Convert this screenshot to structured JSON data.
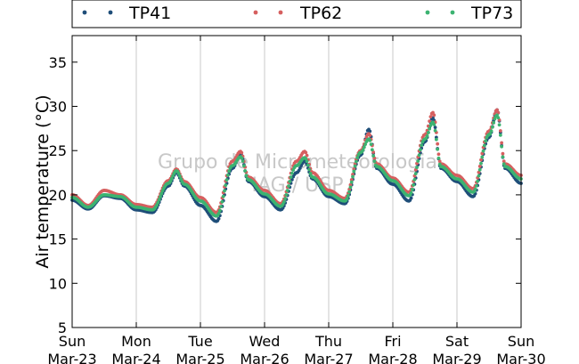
{
  "chart_data": {
    "type": "scatter",
    "title": "",
    "xlabel": "",
    "ylabel": "Air temperature (°C)",
    "ylim": [
      5,
      38
    ],
    "yticks": [
      5,
      10,
      15,
      20,
      25,
      30,
      35
    ],
    "x_range": [
      "2015-03-23",
      "2015-03-30"
    ],
    "x_ticks": [
      {
        "day": "Sun",
        "date": "Mar-23"
      },
      {
        "day": "Mon",
        "date": "Mar-24"
      },
      {
        "day": "Tue",
        "date": "Mar-25"
      },
      {
        "day": "Wed",
        "date": "Mar-26"
      },
      {
        "day": "Thu",
        "date": "Mar-27"
      },
      {
        "day": "Fri",
        "date": "Mar-28"
      },
      {
        "day": "Sat",
        "date": "Mar-29"
      },
      {
        "day": "Sun",
        "date": "Mar-30"
      }
    ],
    "grid": "vertical",
    "legend_position": "top",
    "watermark": [
      "Grupo de Micrometeorologia",
      "IAG / USP"
    ],
    "series": [
      {
        "name": "TP41",
        "color": "#1f4e79",
        "points": [
          [
            "2015-03-23 00:00",
            19.4
          ],
          [
            "2015-03-23 06:00",
            18.4
          ],
          [
            "2015-03-23 12:00",
            19.9
          ],
          [
            "2015-03-23 18:00",
            19.6
          ],
          [
            "2015-03-24 00:00",
            18.3
          ],
          [
            "2015-03-24 06:00",
            18.0
          ],
          [
            "2015-03-24 12:00",
            21.0
          ],
          [
            "2015-03-24 15:00",
            22.5
          ],
          [
            "2015-03-24 18:00",
            21.0
          ],
          [
            "2015-03-25 00:00",
            18.8
          ],
          [
            "2015-03-25 06:00",
            17.0
          ],
          [
            "2015-03-25 12:00",
            23.0
          ],
          [
            "2015-03-25 15:00",
            24.6
          ],
          [
            "2015-03-25 18:00",
            21.5
          ],
          [
            "2015-03-26 00:00",
            19.8
          ],
          [
            "2015-03-26 06:00",
            18.3
          ],
          [
            "2015-03-26 12:00",
            22.5
          ],
          [
            "2015-03-26 15:00",
            23.8
          ],
          [
            "2015-03-26 18:00",
            21.8
          ],
          [
            "2015-03-27 00:00",
            19.8
          ],
          [
            "2015-03-27 06:00",
            19.0
          ],
          [
            "2015-03-27 12:00",
            24.5
          ],
          [
            "2015-03-27 15:00",
            27.4
          ],
          [
            "2015-03-27 18:00",
            23.0
          ],
          [
            "2015-03-28 00:00",
            21.2
          ],
          [
            "2015-03-28 06:00",
            19.3
          ],
          [
            "2015-03-28 12:00",
            26.0
          ],
          [
            "2015-03-28 15:00",
            28.7
          ],
          [
            "2015-03-28 18:00",
            23.0
          ],
          [
            "2015-03-29 00:00",
            21.5
          ],
          [
            "2015-03-29 06:00",
            19.8
          ],
          [
            "2015-03-29 12:00",
            26.5
          ],
          [
            "2015-03-29 15:00",
            29.6
          ],
          [
            "2015-03-29 18:00",
            23.0
          ],
          [
            "2015-03-30 00:00",
            21.3
          ]
        ]
      },
      {
        "name": "TP62",
        "color": "#d65f5f",
        "points": [
          [
            "2015-03-23 00:00",
            20.0
          ],
          [
            "2015-03-23 06:00",
            18.8
          ],
          [
            "2015-03-23 12:00",
            20.5
          ],
          [
            "2015-03-23 18:00",
            20.0
          ],
          [
            "2015-03-24 00:00",
            18.9
          ],
          [
            "2015-03-24 06:00",
            18.6
          ],
          [
            "2015-03-24 12:00",
            21.6
          ],
          [
            "2015-03-24 15:00",
            22.9
          ],
          [
            "2015-03-24 18:00",
            21.5
          ],
          [
            "2015-03-25 00:00",
            19.7
          ],
          [
            "2015-03-25 06:00",
            18.0
          ],
          [
            "2015-03-25 12:00",
            23.8
          ],
          [
            "2015-03-25 15:00",
            24.9
          ],
          [
            "2015-03-25 18:00",
            22.0
          ],
          [
            "2015-03-26 00:00",
            20.5
          ],
          [
            "2015-03-26 06:00",
            19.0
          ],
          [
            "2015-03-26 12:00",
            23.8
          ],
          [
            "2015-03-26 15:00",
            24.9
          ],
          [
            "2015-03-26 18:00",
            22.5
          ],
          [
            "2015-03-27 00:00",
            20.5
          ],
          [
            "2015-03-27 06:00",
            19.6
          ],
          [
            "2015-03-27 12:00",
            25.0
          ],
          [
            "2015-03-27 15:00",
            26.9
          ],
          [
            "2015-03-27 18:00",
            23.5
          ],
          [
            "2015-03-28 00:00",
            21.9
          ],
          [
            "2015-03-28 06:00",
            20.3
          ],
          [
            "2015-03-28 12:00",
            26.8
          ],
          [
            "2015-03-28 15:00",
            29.3
          ],
          [
            "2015-03-28 18:00",
            23.5
          ],
          [
            "2015-03-29 00:00",
            22.2
          ],
          [
            "2015-03-29 06:00",
            20.7
          ],
          [
            "2015-03-29 12:00",
            27.2
          ],
          [
            "2015-03-29 15:00",
            29.6
          ],
          [
            "2015-03-29 18:00",
            23.5
          ],
          [
            "2015-03-30 00:00",
            22.2
          ]
        ]
      },
      {
        "name": "TP73",
        "color": "#3cb371",
        "points": [
          [
            "2015-03-23 00:00",
            19.7
          ],
          [
            "2015-03-23 06:00",
            18.6
          ],
          [
            "2015-03-23 12:00",
            20.0
          ],
          [
            "2015-03-23 18:00",
            19.8
          ],
          [
            "2015-03-24 00:00",
            18.6
          ],
          [
            "2015-03-24 06:00",
            18.3
          ],
          [
            "2015-03-24 12:00",
            21.3
          ],
          [
            "2015-03-24 15:00",
            22.7
          ],
          [
            "2015-03-24 18:00",
            21.2
          ],
          [
            "2015-03-25 00:00",
            19.3
          ],
          [
            "2015-03-25 06:00",
            17.6
          ],
          [
            "2015-03-25 12:00",
            23.3
          ],
          [
            "2015-03-25 15:00",
            24.3
          ],
          [
            "2015-03-25 18:00",
            21.7
          ],
          [
            "2015-03-26 00:00",
            20.1
          ],
          [
            "2015-03-26 06:00",
            18.7
          ],
          [
            "2015-03-26 12:00",
            23.3
          ],
          [
            "2015-03-26 15:00",
            24.2
          ],
          [
            "2015-03-26 18:00",
            22.0
          ],
          [
            "2015-03-27 00:00",
            20.1
          ],
          [
            "2015-03-27 06:00",
            19.3
          ],
          [
            "2015-03-27 12:00",
            24.8
          ],
          [
            "2015-03-27 15:00",
            26.3
          ],
          [
            "2015-03-27 18:00",
            23.2
          ],
          [
            "2015-03-28 00:00",
            21.6
          ],
          [
            "2015-03-28 06:00",
            19.9
          ],
          [
            "2015-03-28 12:00",
            26.3
          ],
          [
            "2015-03-28 15:00",
            28.2
          ],
          [
            "2015-03-28 18:00",
            23.2
          ],
          [
            "2015-03-29 00:00",
            21.8
          ],
          [
            "2015-03-29 06:00",
            20.3
          ],
          [
            "2015-03-29 12:00",
            26.8
          ],
          [
            "2015-03-29 15:00",
            29.0
          ],
          [
            "2015-03-29 18:00",
            23.2
          ],
          [
            "2015-03-30 00:00",
            21.8
          ]
        ]
      }
    ]
  }
}
